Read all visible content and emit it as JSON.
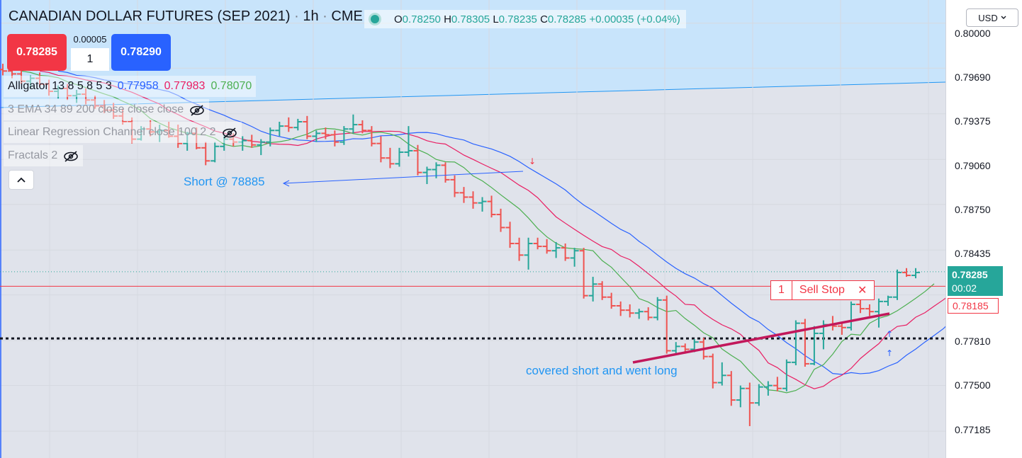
{
  "header": {
    "title": "CANADIAN DOLLAR FUTURES (SEP 2021)",
    "separator": "·",
    "interval": "1h",
    "exchange": "CME",
    "ohlc": {
      "o_label": "O",
      "o": "0.78250",
      "h_label": "H",
      "h": "0.78305",
      "l_label": "L",
      "l": "0.78235",
      "c_label": "C",
      "c": "0.78285",
      "change": "+0.00035 (+0.04%)"
    }
  },
  "trade": {
    "sell_price": "0.78285",
    "buy_price": "0.78290",
    "spread": "0.00005",
    "quantity": "1",
    "sell_color": "#f23645",
    "buy_color": "#2962ff"
  },
  "studies": [
    {
      "name": "Alligator 13 8 5 8 5 3",
      "values": [
        {
          "v": "0.77958",
          "color": "#2962ff"
        },
        {
          "v": "0.77983",
          "color": "#e91e63"
        },
        {
          "v": "0.78070",
          "color": "#4caf50"
        }
      ],
      "visible": true
    },
    {
      "name": "3 EMA 34 89 200 close close close",
      "visible": false,
      "icon": "eye-off-icon"
    },
    {
      "name": "Linear Regression Channel close 100 2 2",
      "visible": false,
      "icon": "eye-off-icon"
    },
    {
      "name": "Fractals 2",
      "visible": false,
      "icon": "eye-off-icon"
    }
  ],
  "annotations": {
    "short": "Short @ 78885",
    "long": "covered short and went long"
  },
  "order": {
    "quantity": "1",
    "label": "Sell Stop",
    "close_symbol": "✕"
  },
  "price_axis": {
    "currency": "USD",
    "ticks": [
      "0.80000",
      "0.79690",
      "0.79375",
      "0.79060",
      "0.78750",
      "0.78435",
      "0.77810",
      "0.77500",
      "0.77185"
    ],
    "last_price": "0.78285",
    "countdown": "00:02",
    "order_price": "0.78185",
    "last_color": "#26a69a",
    "order_color": "#f23645"
  },
  "chart_data": {
    "type": "ohlc",
    "up_color": "#26a69a",
    "down_color": "#ef5350",
    "ylim": [
      0.77,
      0.8016
    ],
    "levels": {
      "last": 0.78285,
      "sell_stop": 0.78185,
      "support": 0.77825
    },
    "bars": [
      [
        0.7968,
        0.7972,
        0.7964,
        0.7967
      ],
      [
        0.7967,
        0.797,
        0.7962,
        0.7965
      ],
      [
        0.7965,
        0.7968,
        0.7958,
        0.796
      ],
      [
        0.796,
        0.7964,
        0.7955,
        0.7962
      ],
      [
        0.7962,
        0.7966,
        0.7956,
        0.7958
      ],
      [
        0.7958,
        0.7961,
        0.795,
        0.7953
      ],
      [
        0.7953,
        0.7957,
        0.7948,
        0.7955
      ],
      [
        0.7955,
        0.7958,
        0.7947,
        0.795
      ],
      [
        0.795,
        0.7954,
        0.7945,
        0.7951
      ],
      [
        0.7951,
        0.7955,
        0.7944,
        0.7947
      ],
      [
        0.7947,
        0.795,
        0.7941,
        0.7943
      ],
      [
        0.7943,
        0.7947,
        0.7938,
        0.794
      ],
      [
        0.794,
        0.7945,
        0.7934,
        0.7936
      ],
      [
        0.7936,
        0.7941,
        0.793,
        0.7932
      ],
      [
        0.7932,
        0.7935,
        0.7917,
        0.792
      ],
      [
        0.792,
        0.7929,
        0.7919,
        0.7927
      ],
      [
        0.7927,
        0.7933,
        0.7922,
        0.7925
      ],
      [
        0.7925,
        0.793,
        0.7918,
        0.7926
      ],
      [
        0.7926,
        0.7932,
        0.7921,
        0.7922
      ],
      [
        0.7922,
        0.793,
        0.7914,
        0.7917
      ],
      [
        0.7917,
        0.7925,
        0.7912,
        0.7924
      ],
      [
        0.7924,
        0.7928,
        0.7913,
        0.7914
      ],
      [
        0.7914,
        0.7918,
        0.7902,
        0.7905
      ],
      [
        0.7905,
        0.7918,
        0.7904,
        0.7915
      ],
      [
        0.7915,
        0.7922,
        0.7912,
        0.792
      ],
      [
        0.792,
        0.7924,
        0.7915,
        0.7918
      ],
      [
        0.7918,
        0.7922,
        0.7912,
        0.7919
      ],
      [
        0.7919,
        0.7923,
        0.7914,
        0.7916
      ],
      [
        0.7916,
        0.792,
        0.7909,
        0.7918
      ],
      [
        0.7918,
        0.7928,
        0.7915,
        0.7926
      ],
      [
        0.7926,
        0.7932,
        0.7922,
        0.7929
      ],
      [
        0.7929,
        0.7935,
        0.7925,
        0.7928
      ],
      [
        0.7928,
        0.7934,
        0.7926,
        0.7932
      ],
      [
        0.7932,
        0.7936,
        0.792,
        0.7922
      ],
      [
        0.7922,
        0.7926,
        0.7918,
        0.7924
      ],
      [
        0.7924,
        0.7928,
        0.792,
        0.7923
      ],
      [
        0.7923,
        0.7926,
        0.7915,
        0.7918
      ],
      [
        0.7918,
        0.7929,
        0.7916,
        0.7927
      ],
      [
        0.7927,
        0.7937,
        0.7924,
        0.793
      ],
      [
        0.793,
        0.7933,
        0.7924,
        0.7926
      ],
      [
        0.7926,
        0.7929,
        0.7915,
        0.7917
      ],
      [
        0.7917,
        0.7922,
        0.7904,
        0.7907
      ],
      [
        0.7907,
        0.7914,
        0.79,
        0.7903
      ],
      [
        0.7903,
        0.7914,
        0.7901,
        0.7911
      ],
      [
        0.7911,
        0.7929,
        0.7908,
        0.7912
      ],
      [
        0.7912,
        0.7916,
        0.7895,
        0.7897
      ],
      [
        0.7897,
        0.7901,
        0.7889,
        0.7899
      ],
      [
        0.7899,
        0.7904,
        0.7893,
        0.7902
      ],
      [
        0.7902,
        0.7904,
        0.789,
        0.7892
      ],
      [
        0.7892,
        0.7895,
        0.788,
        0.7883
      ],
      [
        0.7883,
        0.7887,
        0.7876,
        0.788
      ],
      [
        0.788,
        0.7884,
        0.7872,
        0.7876
      ],
      [
        0.7876,
        0.788,
        0.787,
        0.7877
      ],
      [
        0.7877,
        0.7881,
        0.7866,
        0.7868
      ],
      [
        0.7868,
        0.7872,
        0.7856,
        0.7859
      ],
      [
        0.7859,
        0.7863,
        0.7845,
        0.7848
      ],
      [
        0.7848,
        0.7852,
        0.7836,
        0.784
      ],
      [
        0.784,
        0.7852,
        0.783,
        0.7848
      ],
      [
        0.7848,
        0.7852,
        0.7844,
        0.7846
      ],
      [
        0.7846,
        0.7851,
        0.7841,
        0.7843
      ],
      [
        0.7843,
        0.7849,
        0.7838,
        0.7845
      ],
      [
        0.7845,
        0.7848,
        0.7836,
        0.7838
      ],
      [
        0.7838,
        0.7845,
        0.7832,
        0.7843
      ],
      [
        0.7843,
        0.7845,
        0.781,
        0.7812
      ],
      [
        0.7812,
        0.7825,
        0.7808,
        0.782
      ],
      [
        0.782,
        0.7822,
        0.7809,
        0.7811
      ],
      [
        0.7811,
        0.7814,
        0.7803,
        0.7805
      ],
      [
        0.7805,
        0.7808,
        0.7798,
        0.7802
      ],
      [
        0.7802,
        0.7806,
        0.7797,
        0.78
      ],
      [
        0.78,
        0.7803,
        0.7796,
        0.7801
      ],
      [
        0.7801,
        0.7804,
        0.7795,
        0.7797
      ],
      [
        0.7797,
        0.7811,
        0.7795,
        0.7809
      ],
      [
        0.7809,
        0.7812,
        0.7772,
        0.7774
      ],
      [
        0.7774,
        0.778,
        0.7772,
        0.7777
      ],
      [
        0.7777,
        0.7779,
        0.7772,
        0.7775
      ],
      [
        0.7775,
        0.7782,
        0.7773,
        0.778
      ],
      [
        0.778,
        0.7783,
        0.7768,
        0.777
      ],
      [
        0.777,
        0.7772,
        0.7748,
        0.7752
      ],
      [
        0.7752,
        0.7766,
        0.775,
        0.7757
      ],
      [
        0.7757,
        0.776,
        0.7736,
        0.774
      ],
      [
        0.774,
        0.775,
        0.7735,
        0.7748
      ],
      [
        0.7748,
        0.7752,
        0.7722,
        0.7738
      ],
      [
        0.7738,
        0.7751,
        0.7736,
        0.7749
      ],
      [
        0.7749,
        0.7753,
        0.7743,
        0.775
      ],
      [
        0.775,
        0.7756,
        0.7746,
        0.7748
      ],
      [
        0.7748,
        0.7768,
        0.7746,
        0.7766
      ],
      [
        0.7766,
        0.7795,
        0.7764,
        0.7793
      ],
      [
        0.7793,
        0.7796,
        0.7763,
        0.7765
      ],
      [
        0.7765,
        0.7791,
        0.7764,
        0.7786
      ],
      [
        0.7786,
        0.7795,
        0.7775,
        0.7792
      ],
      [
        0.7792,
        0.7798,
        0.7788,
        0.7791
      ],
      [
        0.7791,
        0.7794,
        0.7785,
        0.779
      ],
      [
        0.779,
        0.7808,
        0.7788,
        0.7806
      ],
      [
        0.7806,
        0.781,
        0.78,
        0.7803
      ],
      [
        0.7803,
        0.7806,
        0.7798,
        0.7801
      ],
      [
        0.7801,
        0.781,
        0.779,
        0.7808
      ],
      [
        0.7808,
        0.7812,
        0.7805,
        0.7811
      ],
      [
        0.7811,
        0.783,
        0.7809,
        0.7828
      ],
      [
        0.7828,
        0.7831,
        0.7825,
        0.7826
      ],
      [
        0.7826,
        0.7831,
        0.7824,
        0.7828
      ]
    ]
  }
}
